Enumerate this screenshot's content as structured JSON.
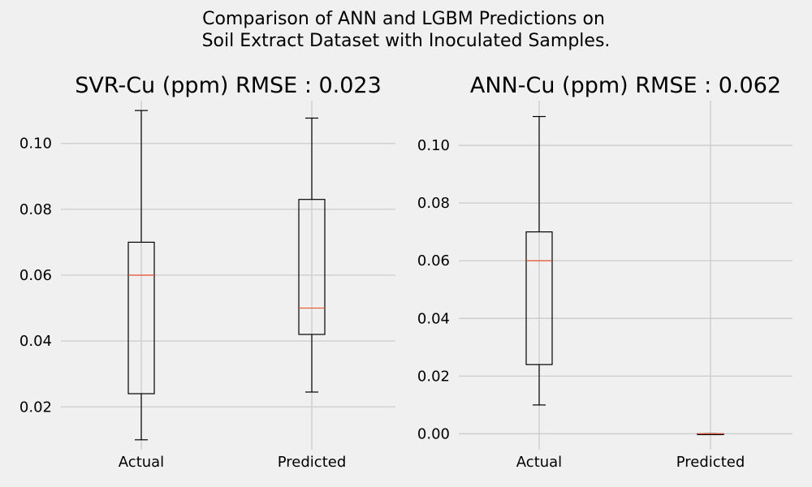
{
  "figure": {
    "suptitle_line1": "Comparison of ANN and LGBM Predictions on",
    "suptitle_line2": "Soil Extract Dataset with Inoculated Samples."
  },
  "colors": {
    "background": "#f0f0f0",
    "grid": "#cbcbcb",
    "median": "#e5532f",
    "box": "#000000"
  },
  "chart_data": [
    {
      "type": "box",
      "title": "SVR-Cu (ppm) RMSE : 0.023",
      "categories": [
        "Actual",
        "Predicted"
      ],
      "ylim": [
        0.007,
        0.113
      ],
      "yticks": [
        0.02,
        0.04,
        0.06,
        0.08,
        0.1
      ],
      "ytick_labels": [
        "0.02",
        "0.04",
        "0.06",
        "0.08",
        "0.10"
      ],
      "grid": true,
      "boxes": [
        {
          "name": "Actual",
          "whislo": 0.01,
          "q1": 0.024,
          "med": 0.06,
          "q3": 0.07,
          "whishi": 0.11
        },
        {
          "name": "Predicted",
          "whislo": 0.0245,
          "q1": 0.042,
          "med": 0.05,
          "q3": 0.083,
          "whishi": 0.1077
        }
      ]
    },
    {
      "type": "box",
      "title": "ANN-Cu (ppm) RMSE : 0.062",
      "categories": [
        "Actual",
        "Predicted"
      ],
      "ylim": [
        -0.0055,
        0.1155
      ],
      "yticks": [
        0.0,
        0.02,
        0.04,
        0.06,
        0.08,
        0.1
      ],
      "ytick_labels": [
        "0.00",
        "0.02",
        "0.04",
        "0.06",
        "0.08",
        "0.10"
      ],
      "grid": true,
      "boxes": [
        {
          "name": "Actual",
          "whislo": 0.01,
          "q1": 0.024,
          "med": 0.06,
          "q3": 0.07,
          "whishi": 0.11
        },
        {
          "name": "Predicted",
          "whislo": 0.0,
          "q1": 0.0,
          "med": 0.0,
          "q3": 0.0,
          "whishi": 0.0
        }
      ]
    }
  ]
}
